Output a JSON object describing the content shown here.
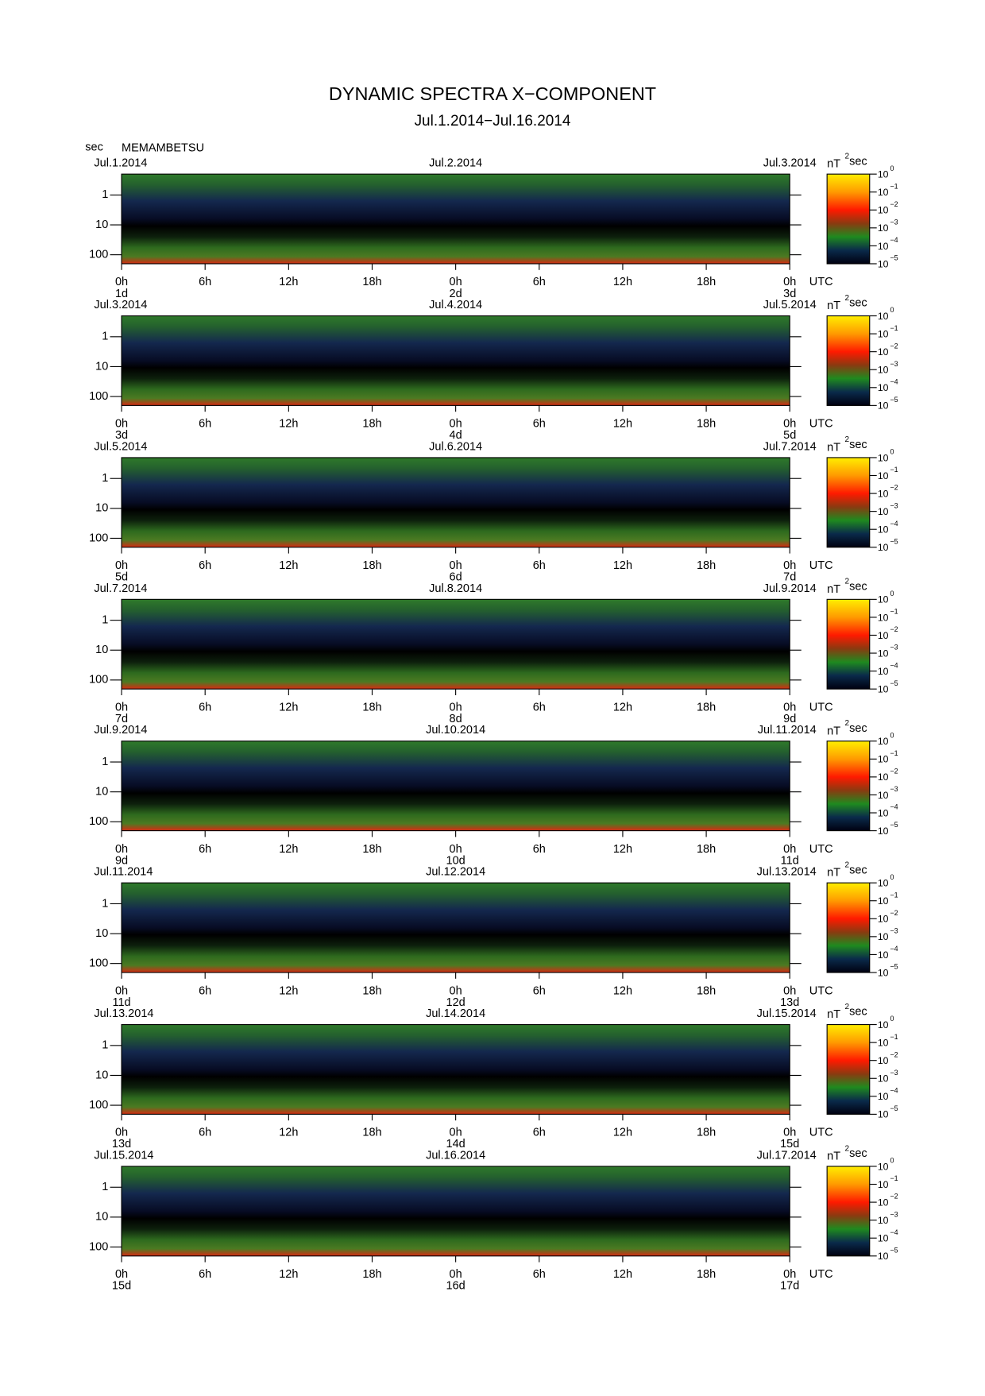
{
  "title": "DYNAMIC SPECTRA X−COMPONENT",
  "subtitle": "Jul.1.2014−Jul.16.2014",
  "y_label": "sec",
  "station": "MEMAMBETSU",
  "chart_data": [
    {
      "type": "spectrogram",
      "xlim": [
        0,
        48
      ],
      "ylim": [
        0.2,
        200
      ],
      "y_scale": "log",
      "y_inverted": true,
      "x_label": "UTC",
      "xticks": [
        {
          "value": 0,
          "label": "0h"
        },
        {
          "value": 6,
          "label": "6h"
        },
        {
          "value": 12,
          "label": "12h"
        },
        {
          "value": 18,
          "label": "18h"
        },
        {
          "value": 24,
          "label": "0h"
        },
        {
          "value": 30,
          "label": "6h"
        },
        {
          "value": 36,
          "label": "12h"
        },
        {
          "value": 42,
          "label": "18h"
        },
        {
          "value": 48,
          "label": "0h"
        }
      ],
      "day_ticks": [
        {
          "value": 0,
          "label": "1d"
        },
        {
          "value": 24,
          "label": "2d"
        },
        {
          "value": 48,
          "label": "3d"
        }
      ],
      "date_ticks": [
        {
          "value": 0,
          "label": "Jul.1.2014"
        },
        {
          "value": 24,
          "label": "Jul.2.2014"
        },
        {
          "value": 48,
          "label": "Jul.3.2014"
        }
      ],
      "yticks": [
        1,
        10,
        100
      ]
    },
    {
      "type": "spectrogram",
      "xlim": [
        0,
        48
      ],
      "ylim": [
        0.2,
        200
      ],
      "y_scale": "log",
      "y_inverted": true,
      "x_label": "UTC",
      "xticks": [
        {
          "value": 0,
          "label": "0h"
        },
        {
          "value": 6,
          "label": "6h"
        },
        {
          "value": 12,
          "label": "12h"
        },
        {
          "value": 18,
          "label": "18h"
        },
        {
          "value": 24,
          "label": "0h"
        },
        {
          "value": 30,
          "label": "6h"
        },
        {
          "value": 36,
          "label": "12h"
        },
        {
          "value": 42,
          "label": "18h"
        },
        {
          "value": 48,
          "label": "0h"
        }
      ],
      "day_ticks": [
        {
          "value": 0,
          "label": "3d"
        },
        {
          "value": 24,
          "label": "4d"
        },
        {
          "value": 48,
          "label": "5d"
        }
      ],
      "date_ticks": [
        {
          "value": 0,
          "label": "Jul.3.2014"
        },
        {
          "value": 24,
          "label": "Jul.4.2014"
        },
        {
          "value": 48,
          "label": "Jul.5.2014"
        }
      ],
      "yticks": [
        1,
        10,
        100
      ]
    },
    {
      "type": "spectrogram",
      "xlim": [
        0,
        48
      ],
      "ylim": [
        0.2,
        200
      ],
      "y_scale": "log",
      "y_inverted": true,
      "x_label": "UTC",
      "xticks": [
        {
          "value": 0,
          "label": "0h"
        },
        {
          "value": 6,
          "label": "6h"
        },
        {
          "value": 12,
          "label": "12h"
        },
        {
          "value": 18,
          "label": "18h"
        },
        {
          "value": 24,
          "label": "0h"
        },
        {
          "value": 30,
          "label": "6h"
        },
        {
          "value": 36,
          "label": "12h"
        },
        {
          "value": 42,
          "label": "18h"
        },
        {
          "value": 48,
          "label": "0h"
        }
      ],
      "day_ticks": [
        {
          "value": 0,
          "label": "5d"
        },
        {
          "value": 24,
          "label": "6d"
        },
        {
          "value": 48,
          "label": "7d"
        }
      ],
      "date_ticks": [
        {
          "value": 0,
          "label": "Jul.5.2014"
        },
        {
          "value": 24,
          "label": "Jul.6.2014"
        },
        {
          "value": 48,
          "label": "Jul.7.2014"
        }
      ],
      "yticks": [
        1,
        10,
        100
      ]
    },
    {
      "type": "spectrogram",
      "xlim": [
        0,
        48
      ],
      "ylim": [
        0.2,
        200
      ],
      "y_scale": "log",
      "y_inverted": true,
      "x_label": "UTC",
      "xticks": [
        {
          "value": 0,
          "label": "0h"
        },
        {
          "value": 6,
          "label": "6h"
        },
        {
          "value": 12,
          "label": "12h"
        },
        {
          "value": 18,
          "label": "18h"
        },
        {
          "value": 24,
          "label": "0h"
        },
        {
          "value": 30,
          "label": "6h"
        },
        {
          "value": 36,
          "label": "12h"
        },
        {
          "value": 42,
          "label": "18h"
        },
        {
          "value": 48,
          "label": "0h"
        }
      ],
      "day_ticks": [
        {
          "value": 0,
          "label": "7d"
        },
        {
          "value": 24,
          "label": "8d"
        },
        {
          "value": 48,
          "label": "9d"
        }
      ],
      "date_ticks": [
        {
          "value": 0,
          "label": "Jul.7.2014"
        },
        {
          "value": 24,
          "label": "Jul.8.2014"
        },
        {
          "value": 48,
          "label": "Jul.9.2014"
        }
      ],
      "yticks": [
        1,
        10,
        100
      ]
    },
    {
      "type": "spectrogram",
      "xlim": [
        0,
        48
      ],
      "ylim": [
        0.2,
        200
      ],
      "y_scale": "log",
      "y_inverted": true,
      "x_label": "UTC",
      "xticks": [
        {
          "value": 0,
          "label": "0h"
        },
        {
          "value": 6,
          "label": "6h"
        },
        {
          "value": 12,
          "label": "12h"
        },
        {
          "value": 18,
          "label": "18h"
        },
        {
          "value": 24,
          "label": "0h"
        },
        {
          "value": 30,
          "label": "6h"
        },
        {
          "value": 36,
          "label": "12h"
        },
        {
          "value": 42,
          "label": "18h"
        },
        {
          "value": 48,
          "label": "0h"
        }
      ],
      "day_ticks": [
        {
          "value": 0,
          "label": "9d"
        },
        {
          "value": 24,
          "label": "10d"
        },
        {
          "value": 48,
          "label": "11d"
        }
      ],
      "date_ticks": [
        {
          "value": 0,
          "label": "Jul.9.2014"
        },
        {
          "value": 24,
          "label": "Jul.10.2014"
        },
        {
          "value": 48,
          "label": "Jul.11.2014"
        }
      ],
      "yticks": [
        1,
        10,
        100
      ]
    },
    {
      "type": "spectrogram",
      "xlim": [
        0,
        48
      ],
      "ylim": [
        0.2,
        200
      ],
      "y_scale": "log",
      "y_inverted": true,
      "x_label": "UTC",
      "xticks": [
        {
          "value": 0,
          "label": "0h"
        },
        {
          "value": 6,
          "label": "6h"
        },
        {
          "value": 12,
          "label": "12h"
        },
        {
          "value": 18,
          "label": "18h"
        },
        {
          "value": 24,
          "label": "0h"
        },
        {
          "value": 30,
          "label": "6h"
        },
        {
          "value": 36,
          "label": "12h"
        },
        {
          "value": 42,
          "label": "18h"
        },
        {
          "value": 48,
          "label": "0h"
        }
      ],
      "day_ticks": [
        {
          "value": 0,
          "label": "11d"
        },
        {
          "value": 24,
          "label": "12d"
        },
        {
          "value": 48,
          "label": "13d"
        }
      ],
      "date_ticks": [
        {
          "value": 0,
          "label": "Jul.11.2014"
        },
        {
          "value": 24,
          "label": "Jul.12.2014"
        },
        {
          "value": 48,
          "label": "Jul.13.2014"
        }
      ],
      "yticks": [
        1,
        10,
        100
      ]
    },
    {
      "type": "spectrogram",
      "xlim": [
        0,
        48
      ],
      "ylim": [
        0.2,
        200
      ],
      "y_scale": "log",
      "y_inverted": true,
      "x_label": "UTC",
      "xticks": [
        {
          "value": 0,
          "label": "0h"
        },
        {
          "value": 6,
          "label": "6h"
        },
        {
          "value": 12,
          "label": "12h"
        },
        {
          "value": 18,
          "label": "18h"
        },
        {
          "value": 24,
          "label": "0h"
        },
        {
          "value": 30,
          "label": "6h"
        },
        {
          "value": 36,
          "label": "12h"
        },
        {
          "value": 42,
          "label": "18h"
        },
        {
          "value": 48,
          "label": "0h"
        }
      ],
      "day_ticks": [
        {
          "value": 0,
          "label": "13d"
        },
        {
          "value": 24,
          "label": "14d"
        },
        {
          "value": 48,
          "label": "15d"
        }
      ],
      "date_ticks": [
        {
          "value": 0,
          "label": "Jul.13.2014"
        },
        {
          "value": 24,
          "label": "Jul.14.2014"
        },
        {
          "value": 48,
          "label": "Jul.15.2014"
        }
      ],
      "yticks": [
        1,
        10,
        100
      ]
    },
    {
      "type": "spectrogram",
      "xlim": [
        0,
        48
      ],
      "ylim": [
        0.2,
        200
      ],
      "y_scale": "log",
      "y_inverted": true,
      "x_label": "UTC",
      "xticks": [
        {
          "value": 0,
          "label": "0h"
        },
        {
          "value": 6,
          "label": "6h"
        },
        {
          "value": 12,
          "label": "12h"
        },
        {
          "value": 18,
          "label": "18h"
        },
        {
          "value": 24,
          "label": "0h"
        },
        {
          "value": 30,
          "label": "6h"
        },
        {
          "value": 36,
          "label": "12h"
        },
        {
          "value": 42,
          "label": "18h"
        },
        {
          "value": 48,
          "label": "0h"
        }
      ],
      "day_ticks": [
        {
          "value": 0,
          "label": "15d"
        },
        {
          "value": 24,
          "label": "16d"
        },
        {
          "value": 48,
          "label": "17d"
        }
      ],
      "date_ticks": [
        {
          "value": 0,
          "label": "Jul.15.2014"
        },
        {
          "value": 24,
          "label": "Jul.16.2014"
        },
        {
          "value": 48,
          "label": "Jul.17.2014"
        }
      ],
      "yticks": [
        1,
        10,
        100
      ]
    }
  ],
  "colorbar": {
    "unit": "nT",
    "unit_exponent": "2",
    "unit_suffix": "sec",
    "zlim": [
      1e-05,
      1
    ],
    "z_scale": "log",
    "zticks": [
      {
        "value": 1,
        "label": "10",
        "exponent": "0"
      },
      {
        "value": 0.1,
        "label": "10",
        "exponent": "−1"
      },
      {
        "value": 0.01,
        "label": "10",
        "exponent": "−2"
      },
      {
        "value": 0.001,
        "label": "10",
        "exponent": "−3"
      },
      {
        "value": 0.0001,
        "label": "10",
        "exponent": "−4"
      },
      {
        "value": 1e-05,
        "label": "10",
        "exponent": "−5"
      }
    ]
  }
}
